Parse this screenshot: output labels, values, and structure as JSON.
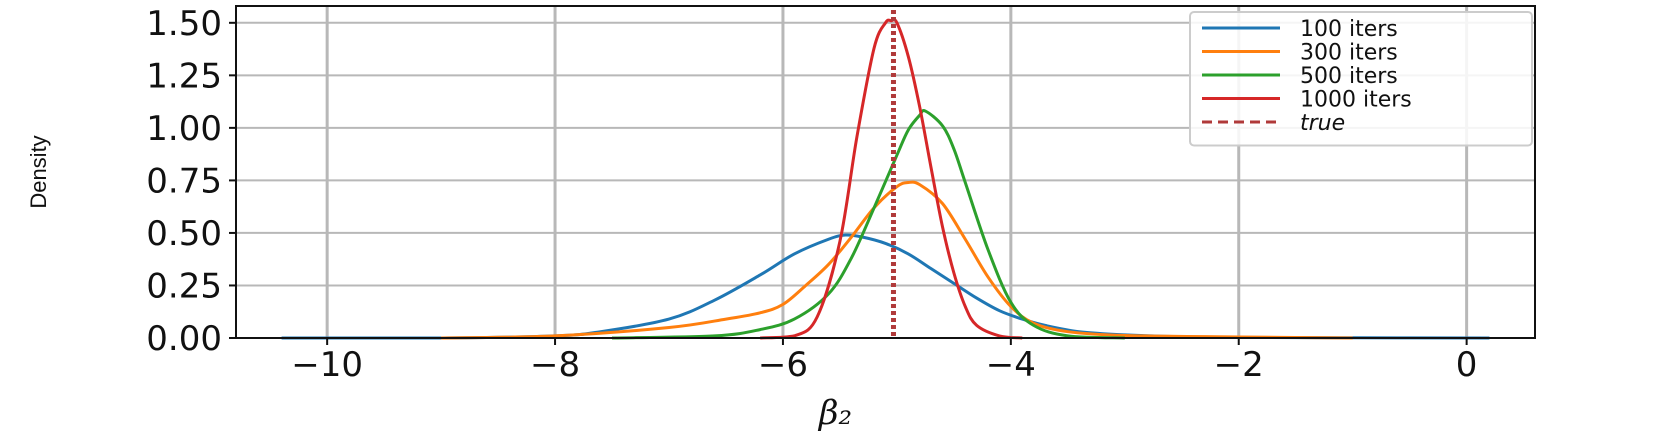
{
  "chart_data": {
    "type": "line",
    "title": "",
    "xlabel": "β₂",
    "ylabel": "Density",
    "xlim": [
      -10.8,
      0.6
    ],
    "ylim": [
      0.0,
      1.58
    ],
    "grid": true,
    "xticks": [
      -10,
      -8,
      -6,
      -4,
      -2,
      0
    ],
    "xtick_labels": [
      "−10",
      "−8",
      "−6",
      "−4",
      "−2",
      "0"
    ],
    "yticks": [
      0.0,
      0.25,
      0.5,
      0.75,
      1.0,
      1.25,
      1.5
    ],
    "ytick_labels": [
      "0.00",
      "0.25",
      "0.50",
      "0.75",
      "1.00",
      "1.25",
      "1.50"
    ],
    "legend_position": "top-right",
    "series": [
      {
        "name": "100 iters",
        "color": "#1f77b4",
        "x": [
          -10.4,
          -9.0,
          -8.0,
          -7.6,
          -7.0,
          -6.6,
          -6.2,
          -5.9,
          -5.6,
          -5.45,
          -5.3,
          -5.1,
          -4.9,
          -4.7,
          -4.5,
          -4.3,
          -4.1,
          -3.9,
          -3.7,
          -3.4,
          -3.0,
          -2.5,
          -2.0,
          -1.0,
          0.2
        ],
        "y": [
          0.0,
          0.0,
          0.01,
          0.03,
          0.09,
          0.18,
          0.3,
          0.4,
          0.47,
          0.49,
          0.48,
          0.45,
          0.4,
          0.33,
          0.26,
          0.19,
          0.13,
          0.09,
          0.06,
          0.03,
          0.015,
          0.006,
          0.003,
          0.001,
          0.0
        ]
      },
      {
        "name": "300 iters",
        "color": "#ff7f0e",
        "x": [
          -9.0,
          -8.0,
          -7.0,
          -6.5,
          -6.2,
          -6.0,
          -5.8,
          -5.6,
          -5.4,
          -5.2,
          -5.0,
          -4.9,
          -4.8,
          -4.6,
          -4.4,
          -4.2,
          -4.0,
          -3.8,
          -3.5,
          -3.0,
          -2.0,
          -1.0
        ],
        "y": [
          0.0,
          0.01,
          0.05,
          0.09,
          0.12,
          0.16,
          0.25,
          0.35,
          0.48,
          0.62,
          0.72,
          0.74,
          0.73,
          0.64,
          0.47,
          0.29,
          0.15,
          0.07,
          0.03,
          0.012,
          0.005,
          0.0
        ]
      },
      {
        "name": "500 iters",
        "color": "#2ca02c",
        "x": [
          -7.5,
          -6.6,
          -6.2,
          -5.9,
          -5.6,
          -5.4,
          -5.2,
          -5.0,
          -4.9,
          -4.8,
          -4.75,
          -4.6,
          -4.5,
          -4.4,
          -4.2,
          -4.0,
          -3.8,
          -3.5,
          -3.0
        ],
        "y": [
          0.0,
          0.01,
          0.04,
          0.09,
          0.21,
          0.38,
          0.62,
          0.87,
          0.99,
          1.06,
          1.08,
          1.01,
          0.9,
          0.74,
          0.42,
          0.17,
          0.06,
          0.01,
          0.0
        ]
      },
      {
        "name": "1000 iters",
        "color": "#d62728",
        "x": [
          -6.2,
          -5.9,
          -5.7,
          -5.5,
          -5.35,
          -5.2,
          -5.1,
          -5.05,
          -5.0,
          -4.9,
          -4.8,
          -4.7,
          -4.6,
          -4.5,
          -4.4,
          -4.3,
          -4.1,
          -3.9
        ],
        "y": [
          0.0,
          0.01,
          0.1,
          0.46,
          0.96,
          1.38,
          1.5,
          1.51,
          1.5,
          1.34,
          1.1,
          0.81,
          0.53,
          0.31,
          0.15,
          0.06,
          0.01,
          0.0
        ]
      }
    ],
    "vlines": [
      {
        "name": "true",
        "x": -5.03,
        "color": "#b03a3a",
        "style": "dotted"
      }
    ]
  }
}
